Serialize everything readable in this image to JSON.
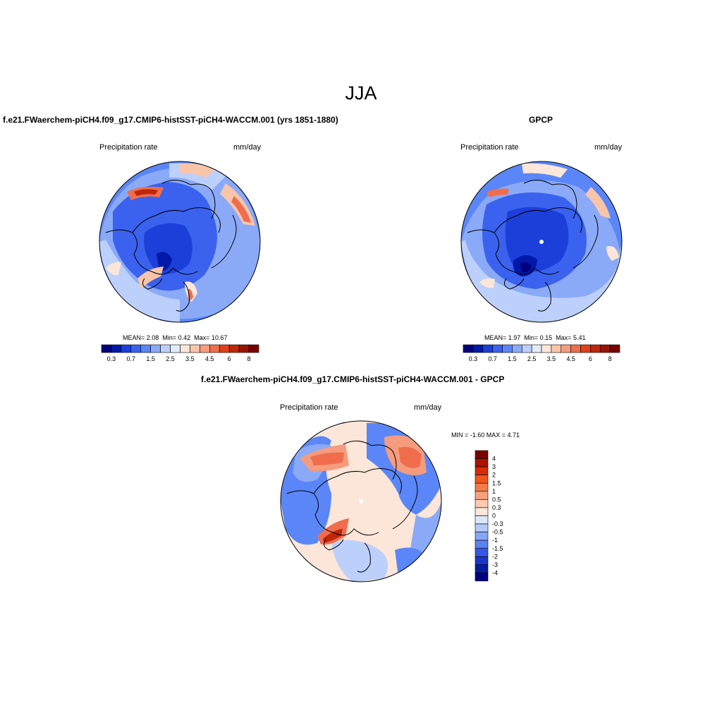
{
  "main_title": "JJA",
  "panels": [
    {
      "title": "f.e21.FWaerchem-piCH4.f09_g17.CMIP6-histSST-piCH4-WACCM.001 (yrs 1851-1880)",
      "variable": "Precipitation rate",
      "units": "mm/day",
      "stats": {
        "mean_label": "MEAN=",
        "mean": "2.08",
        "min_label": "Min=",
        "min": "0.42",
        "max_label": "Max=",
        "max": "10.67"
      },
      "colorbar_labels": [
        "0.3",
        "0.7",
        "1.5",
        "2.5",
        "3.5",
        "4.5",
        "6",
        "8"
      ]
    },
    {
      "title": "GPCP",
      "variable": "Precipitation rate",
      "units": "mm/day",
      "stats": {
        "mean_label": "MEAN=",
        "mean": "1.97",
        "min_label": "Min=",
        "min": "0.15",
        "max_label": "Max=",
        "max": "5.41"
      },
      "colorbar_labels": [
        "0.3",
        "0.7",
        "1.5",
        "2.5",
        "3.5",
        "4.5",
        "6",
        "8"
      ]
    },
    {
      "title": "f.e21.FWaerchem-piCH4.f09_g17.CMIP6-histSST-piCH4-WACCM.001 - GPCP",
      "variable": "Precipitation rate",
      "units": "mm/day",
      "minmax_label": "MIN =  -1.60 MAX =   4.71",
      "colorbar_labels": [
        "4",
        "3",
        "2",
        "1.5",
        "1",
        "0.5",
        "0.3",
        "0",
        "-0.3",
        "-0.5",
        "-1",
        "-1.5",
        "-2",
        "-3",
        "-4"
      ]
    }
  ],
  "colors": {
    "abs_scale": [
      "#00007f",
      "#0019a8",
      "#1b3fd8",
      "#3a62ee",
      "#5a86f7",
      "#8aaaf7",
      "#bcd0fb",
      "#e1ebfa",
      "#fbe6d9",
      "#f8c5ab",
      "#f49c7d",
      "#ef6d4d",
      "#e0401b",
      "#c02607",
      "#9a1404",
      "#7a0000"
    ],
    "diff_scale": [
      "#7a0000",
      "#a81302",
      "#d52d06",
      "#ee561d",
      "#f37b4a",
      "#f6a07c",
      "#fbcab0",
      "#fbe6d9",
      "#dce8fa",
      "#b3caf8",
      "#86a6f5",
      "#5a82f0",
      "#3558e3",
      "#1d36c5",
      "#061d9e",
      "#00007f"
    ]
  }
}
